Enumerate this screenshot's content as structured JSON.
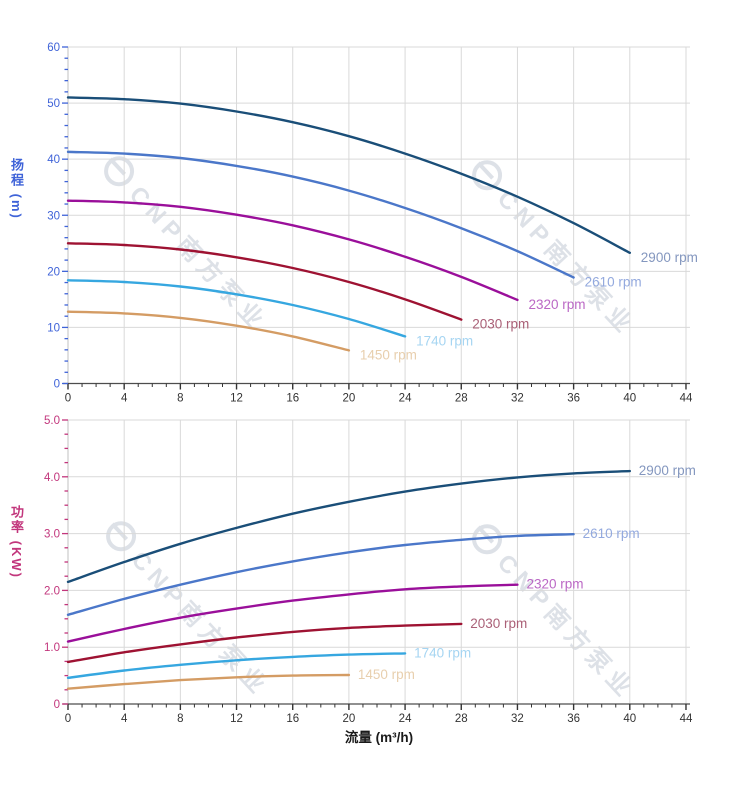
{
  "watermark": {
    "brand": "CNP",
    "cn": "南方泵业"
  },
  "colors": {
    "head_axis": "#3f63d8",
    "power_axis": "#c2367c",
    "x_axis_text": "#333333",
    "grid": "#d9d9d9",
    "frame": "#cccccc",
    "axis_line": "#4d4d4d"
  },
  "chart_data": [
    {
      "type": "line",
      "title": "",
      "xlabel": "",
      "ylabel": "扬程 (m)",
      "xlim": [
        0,
        44
      ],
      "ylim": [
        0,
        60
      ],
      "grid": true,
      "legend_position": "end-of-line",
      "xticks": {
        "values": [
          0,
          4,
          8,
          12,
          16,
          20,
          24,
          28,
          32,
          36,
          40,
          44
        ],
        "labels": [
          "0",
          "4",
          "8",
          "12",
          "16",
          "20",
          "24",
          "28",
          "32",
          "36",
          "40",
          "44"
        ],
        "minor_step": 1
      },
      "yticks": {
        "values": [
          0,
          10,
          20,
          30,
          40,
          50,
          60
        ],
        "labels": [
          "0",
          "10",
          "20",
          "30",
          "40",
          "50",
          "60"
        ],
        "minor_step": 2
      },
      "series": [
        {
          "name": "2900 rpm",
          "rpm": 2900,
          "color": "#1a4e78",
          "label_color": "#8497bf",
          "x": [
            0,
            4,
            8,
            12,
            16,
            20,
            24,
            28,
            32,
            36,
            40
          ],
          "y": [
            51.0,
            50.7,
            49.9,
            48.5,
            46.6,
            44.1,
            41.0,
            37.4,
            33.3,
            28.6,
            23.3
          ]
        },
        {
          "name": "2610 rpm",
          "rpm": 2610,
          "color": "#4b77c9",
          "label_color": "#93a9de",
          "x": [
            0,
            4,
            8,
            12,
            16,
            20,
            24,
            28,
            32,
            36
          ],
          "y": [
            41.3,
            41.0,
            40.2,
            38.8,
            36.9,
            34.4,
            31.3,
            27.7,
            23.6,
            18.9
          ]
        },
        {
          "name": "2320 rpm",
          "rpm": 2320,
          "color": "#9a0f9a",
          "label_color": "#bb68c5",
          "x": [
            0,
            4,
            8,
            12,
            16,
            20,
            24,
            28,
            32
          ],
          "y": [
            32.6,
            32.3,
            31.5,
            30.1,
            28.2,
            25.7,
            22.6,
            19.0,
            14.9
          ]
        },
        {
          "name": "2030 rpm",
          "rpm": 2030,
          "color": "#9e1232",
          "label_color": "#aa6077",
          "x": [
            0,
            4,
            8,
            12,
            16,
            20,
            24,
            28
          ],
          "y": [
            25.0,
            24.7,
            23.9,
            22.5,
            20.6,
            18.1,
            15.0,
            11.4
          ]
        },
        {
          "name": "1740 rpm",
          "rpm": 1740,
          "color": "#36a7e0",
          "label_color": "#a6d5f2",
          "x": [
            0,
            4,
            8,
            12,
            16,
            20,
            24
          ],
          "y": [
            18.4,
            18.1,
            17.3,
            15.9,
            14.0,
            11.5,
            8.4
          ]
        },
        {
          "name": "1450 rpm",
          "rpm": 1450,
          "color": "#d49c64",
          "label_color": "#e8cfae",
          "x": [
            0,
            4,
            8,
            12,
            16,
            20
          ],
          "y": [
            12.8,
            12.5,
            11.7,
            10.3,
            8.4,
            5.9
          ]
        }
      ]
    },
    {
      "type": "line",
      "title": "",
      "xlabel": "流量 (m³/h)",
      "ylabel": "功率 (KW)",
      "xlim": [
        0,
        44
      ],
      "ylim": [
        0,
        5
      ],
      "grid": true,
      "legend_position": "end-of-line",
      "xticks": {
        "values": [
          0,
          4,
          8,
          12,
          16,
          20,
          24,
          28,
          32,
          36,
          40,
          44
        ],
        "labels": [
          "0",
          "4",
          "8",
          "12",
          "16",
          "20",
          "24",
          "28",
          "32",
          "36",
          "40",
          "44"
        ],
        "minor_step": 1
      },
      "yticks": {
        "values": [
          0,
          1,
          2,
          3,
          4,
          5
        ],
        "labels": [
          "0",
          "1.0",
          "2.0",
          "3.0",
          "4.0",
          "5.0"
        ],
        "minor_step": 0.25
      },
      "series": [
        {
          "name": "2900 rpm",
          "rpm": 2900,
          "color": "#1a4e78",
          "label_color": "#8497bf",
          "x": [
            0,
            4,
            8,
            12,
            16,
            20,
            24,
            28,
            32,
            36,
            40
          ],
          "y": [
            2.15,
            2.5,
            2.82,
            3.1,
            3.35,
            3.56,
            3.74,
            3.88,
            3.99,
            4.06,
            4.1
          ]
        },
        {
          "name": "2610 rpm",
          "rpm": 2610,
          "color": "#4b77c9",
          "label_color": "#93a9de",
          "x": [
            0,
            4,
            8,
            12,
            16,
            20,
            24,
            28,
            32,
            36
          ],
          "y": [
            1.57,
            1.85,
            2.1,
            2.32,
            2.51,
            2.67,
            2.8,
            2.89,
            2.96,
            2.99
          ]
        },
        {
          "name": "2320 rpm",
          "rpm": 2320,
          "color": "#9a0f9a",
          "label_color": "#bb68c5",
          "x": [
            0,
            4,
            8,
            12,
            16,
            20,
            24,
            28,
            32
          ],
          "y": [
            1.1,
            1.32,
            1.52,
            1.68,
            1.82,
            1.93,
            2.02,
            2.07,
            2.1
          ]
        },
        {
          "name": "2030 rpm",
          "rpm": 2030,
          "color": "#9e1232",
          "label_color": "#aa6077",
          "x": [
            0,
            4,
            8,
            12,
            16,
            20,
            24,
            28
          ],
          "y": [
            0.74,
            0.91,
            1.05,
            1.17,
            1.27,
            1.34,
            1.38,
            1.41
          ]
        },
        {
          "name": "1740 rpm",
          "rpm": 1740,
          "color": "#36a7e0",
          "label_color": "#a6d5f2",
          "x": [
            0,
            4,
            8,
            12,
            16,
            20,
            24
          ],
          "y": [
            0.46,
            0.59,
            0.69,
            0.77,
            0.83,
            0.87,
            0.89
          ]
        },
        {
          "name": "1450 rpm",
          "rpm": 1450,
          "color": "#d49c64",
          "label_color": "#e8cfae",
          "x": [
            0,
            4,
            8,
            12,
            16,
            20
          ],
          "y": [
            0.27,
            0.35,
            0.42,
            0.47,
            0.5,
            0.51
          ]
        }
      ]
    }
  ]
}
